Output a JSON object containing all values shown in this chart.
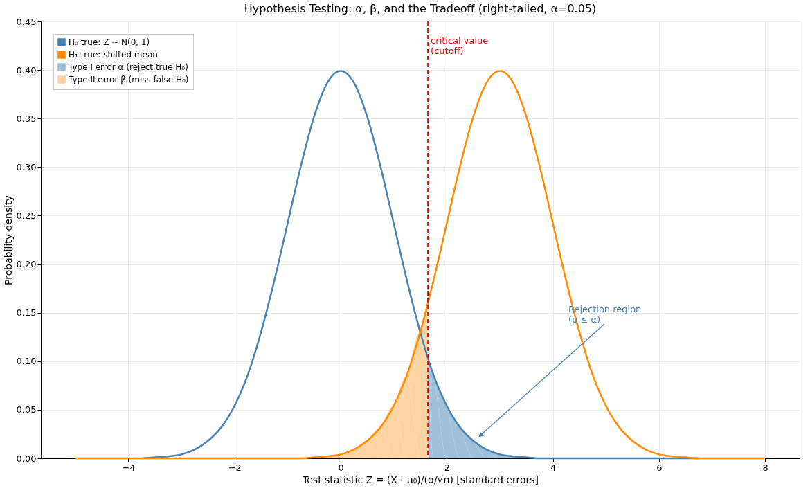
{
  "chart_data": {
    "type": "line",
    "title": "Hypothesis Testing: α, β, and the Tradeoff (right-tailed, α=0.05)",
    "xlabel": "Test statistic  Z = (X̄ - μ₀)/(σ/√n)   [standard errors]",
    "ylabel": "Probability density",
    "x": [
      -5,
      -4.75,
      -4.5,
      -4.25,
      -4,
      -3.75,
      -3.5,
      -3.25,
      -3,
      -2.75,
      -2.5,
      -2.25,
      -2,
      -1.75,
      -1.5,
      -1.25,
      -1,
      -0.75,
      -0.5,
      -0.25,
      0,
      0.25,
      0.5,
      0.75,
      1,
      1.25,
      1.5,
      1.75,
      2,
      2.25,
      2.5,
      2.75,
      3,
      3.25,
      3.5,
      3.75,
      4,
      4.25,
      4.5,
      4.75,
      5,
      5.25,
      5.5,
      5.75,
      6,
      6.25,
      6.5,
      6.75,
      7,
      7.25,
      7.5,
      7.75,
      8
    ],
    "series": [
      {
        "name": "H₀ true: Z ~ N(0, 1)",
        "color": "#4682b4",
        "values": [
          null,
          null,
          null,
          null,
          null,
          0,
          0.001,
          0.002,
          0.004,
          0.009,
          0.018,
          0.032,
          0.054,
          0.086,
          0.13,
          0.183,
          0.242,
          0.301,
          0.352,
          0.387,
          0.399,
          0.387,
          0.352,
          0.301,
          0.242,
          0.183,
          0.13,
          0.086,
          0.054,
          0.032,
          0.018,
          0.009,
          0.004,
          0.002,
          0.001,
          0,
          0,
          0,
          0,
          0,
          0,
          0,
          0,
          0,
          0,
          0,
          0,
          0,
          null,
          null,
          null,
          null,
          null
        ]
      },
      {
        "name": "H₁ true: shifted mean",
        "color": "#ff8c00",
        "values": [
          0,
          0,
          0,
          0,
          0,
          0,
          0,
          0,
          0,
          0,
          0,
          0,
          0,
          0,
          0,
          0,
          0,
          0,
          0.001,
          0.002,
          0.004,
          0.009,
          0.018,
          0.032,
          0.054,
          0.086,
          0.13,
          0.183,
          0.242,
          0.301,
          0.352,
          0.387,
          0.399,
          0.387,
          0.352,
          0.301,
          0.242,
          0.183,
          0.13,
          0.086,
          0.054,
          0.032,
          0.018,
          0.009,
          0.004,
          0.002,
          0.001,
          0,
          0,
          0,
          0,
          0,
          0
        ]
      },
      {
        "name": "Type I error α (reject true H₀)",
        "type": "area",
        "color": "#a0bfd9",
        "x": [
          1.645,
          1.75,
          2,
          2.25,
          2.5,
          2.75,
          3,
          3.25,
          3.5,
          3.75,
          4,
          5,
          6,
          7,
          8
        ],
        "values": [
          0.103,
          0.086,
          0.054,
          0.032,
          0.018,
          0.009,
          0.004,
          0.002,
          0.001,
          0,
          0,
          0,
          0,
          0,
          0
        ]
      },
      {
        "name": "Type II error β (miss false H₀)",
        "type": "area",
        "color": "#ffd4a3",
        "x": [
          -5,
          -1,
          -0.5,
          -0.25,
          0,
          0.25,
          0.5,
          0.75,
          1,
          1.25,
          1.5,
          1.645
        ],
        "values": [
          0,
          0,
          0.001,
          0.002,
          0.004,
          0.009,
          0.018,
          0.032,
          0.054,
          0.086,
          0.13,
          0.159
        ]
      }
    ],
    "xlim": [
      -5.65,
      8.65
    ],
    "xticks": [
      {
        "value": -4,
        "label": "−4"
      },
      {
        "value": -2,
        "label": "−2"
      },
      0,
      2,
      4,
      6,
      8
    ],
    "ylim": [
      0,
      0.45
    ],
    "yticks": [
      {
        "value": 0,
        "label": "0.00"
      },
      {
        "value": 0.05,
        "label": "0.05"
      },
      {
        "value": 0.1,
        "label": "0.10"
      },
      {
        "value": 0.15,
        "label": "0.15"
      },
      {
        "value": 0.2,
        "label": "0.20"
      },
      {
        "value": 0.25,
        "label": "0.25"
      },
      {
        "value": 0.3,
        "label": "0.30"
      },
      {
        "value": 0.35,
        "label": "0.35"
      },
      {
        "value": 0.4,
        "label": "0.40"
      },
      {
        "value": 0.45,
        "label": "0.45"
      }
    ],
    "ref_lines": [
      {
        "axis": "x",
        "value": 1.645,
        "label": "critical value\n(cutoff)",
        "color": "#ff0000",
        "line_style": "dashed"
      }
    ],
    "annotations": [
      "Rejection region\n(p ≤ α)"
    ],
    "grid": true,
    "legend": "top left",
    "marker": "none"
  }
}
